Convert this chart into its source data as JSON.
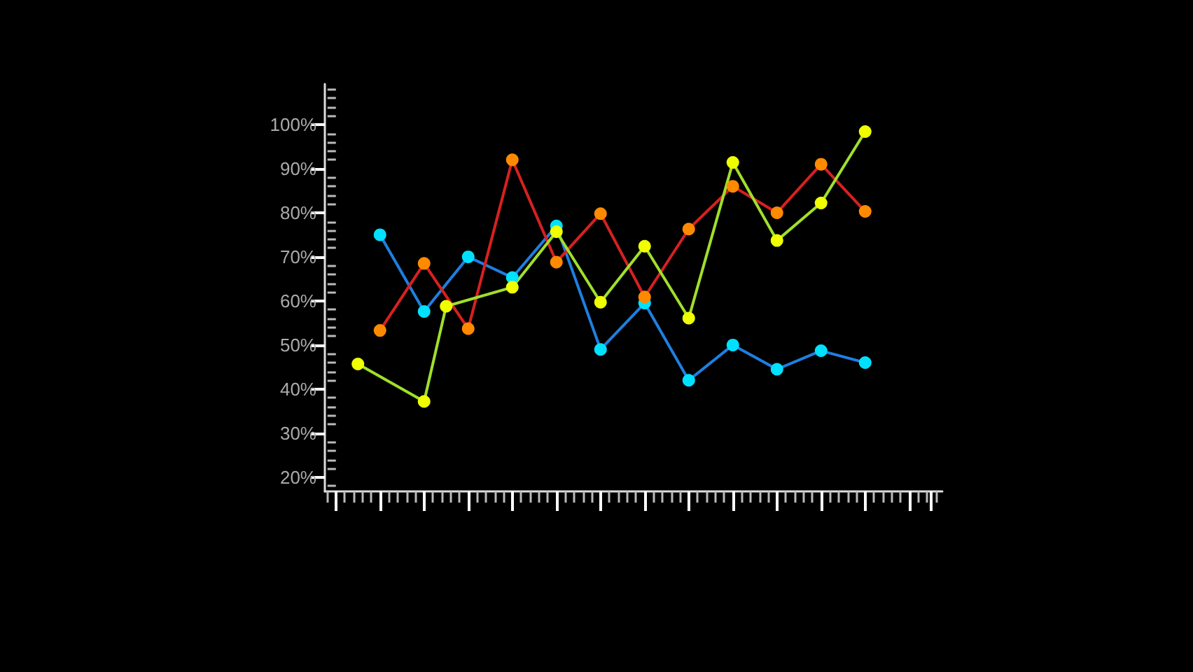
{
  "chart_data": {
    "type": "line",
    "marker": "circle",
    "line_style": "solid",
    "grid": false,
    "tick_labels": "y",
    "categories": [
      null,
      null,
      null,
      null,
      null,
      null,
      null,
      null,
      null,
      null,
      null,
      null,
      null,
      null,
      null,
      null,
      null,
      null,
      null,
      null,
      null,
      null,
      null,
      null,
      null,
      null,
      null,
      null
    ],
    "ylim": [
      16.8,
      109.2
    ],
    "yticks": [
      {
        "value": 20,
        "label": "20%"
      },
      {
        "value": 30,
        "label": "30%"
      },
      {
        "value": 40,
        "label": "40%"
      },
      {
        "value": 50,
        "label": "50%"
      },
      {
        "value": 60,
        "label": "60%"
      },
      {
        "value": 70,
        "label": "70%"
      },
      {
        "value": 80,
        "label": "80%"
      },
      {
        "value": 90,
        "label": "90%"
      },
      {
        "value": 100,
        "label": "100%"
      }
    ],
    "series": [
      {
        "color": "#1e7fe0",
        "colors": [
          null,
          null,
          "#00e1ff",
          null,
          "#00e1ff",
          null,
          "#00e1ff",
          null,
          "#00e1ff",
          null,
          "#00e1ff",
          null,
          "#00e1ff",
          null,
          "#00e1ff",
          null,
          "#00e1ff",
          null,
          "#00e1ff",
          null,
          "#00e1ff",
          null,
          "#00e1ff",
          null,
          "#00e1ff",
          null,
          null,
          null
        ],
        "values": [
          null,
          null,
          75,
          null,
          57.6,
          null,
          70,
          null,
          65.3,
          null,
          77,
          null,
          49,
          null,
          59.5,
          null,
          42,
          null,
          50,
          null,
          44.5,
          null,
          48.7,
          null,
          46,
          null,
          null,
          null
        ]
      },
      {
        "color": "#d82020",
        "colors": [
          null,
          null,
          "#ff8a00",
          null,
          "#ff8a00",
          null,
          "#ff8a00",
          null,
          "#ff8a00",
          null,
          "#ff8a00",
          null,
          "#ff8a00",
          null,
          "#ff8a00",
          null,
          "#ff8a00",
          null,
          "#ff8a00",
          null,
          "#ff8a00",
          null,
          "#ff8a00",
          null,
          "#ff8a00",
          null,
          null,
          null
        ],
        "values": [
          null,
          null,
          53.3,
          null,
          68.5,
          null,
          53.7,
          null,
          92,
          null,
          68.8,
          null,
          79.8,
          null,
          60.9,
          null,
          76.3,
          null,
          86,
          null,
          80,
          null,
          91,
          null,
          80.3,
          null,
          null,
          null
        ]
      },
      {
        "color": "#a0e02a",
        "colors": [
          null,
          "#f0ff00",
          null,
          null,
          "#f0ff00",
          "#f0ff00",
          null,
          null,
          "#f0ff00",
          null,
          "#f0ff00",
          null,
          "#f0ff00",
          null,
          "#f0ff00",
          null,
          "#f0ff00",
          null,
          "#f0ff00",
          null,
          "#f0ff00",
          null,
          "#f0ff00",
          null,
          "#f0ff00",
          null,
          null,
          null
        ],
        "values": [
          null,
          45.7,
          null,
          null,
          37.2,
          58.8,
          null,
          null,
          63.1,
          null,
          75.7,
          null,
          59.7,
          null,
          72.4,
          null,
          56.1,
          null,
          91.4,
          null,
          73.7,
          null,
          82.2,
          null,
          98.4,
          null,
          null,
          null
        ]
      }
    ]
  }
}
